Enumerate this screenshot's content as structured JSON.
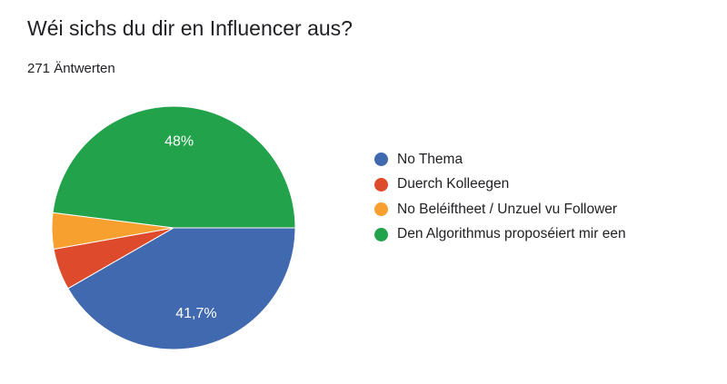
{
  "title": "Wéi sichs du dir en Influencer aus?",
  "response_count": "271 Äntwerten",
  "chart_data": {
    "type": "pie",
    "title": "Wéi sichs du dir en Influencer aus?",
    "categories": [
      "No Thema",
      "Duerch Kolleegen",
      "No Beléiftheet / Unzuel vu Follower",
      "Den Algorithmus proposéiert mir een"
    ],
    "values": [
      41.7,
      5.5,
      4.8,
      48.0
    ],
    "data_labels": [
      "41,7%",
      "",
      "",
      "48%"
    ],
    "colors": [
      "#4169B0",
      "#DD4B2C",
      "#F7A030",
      "#22A24A"
    ],
    "legend": "right"
  }
}
